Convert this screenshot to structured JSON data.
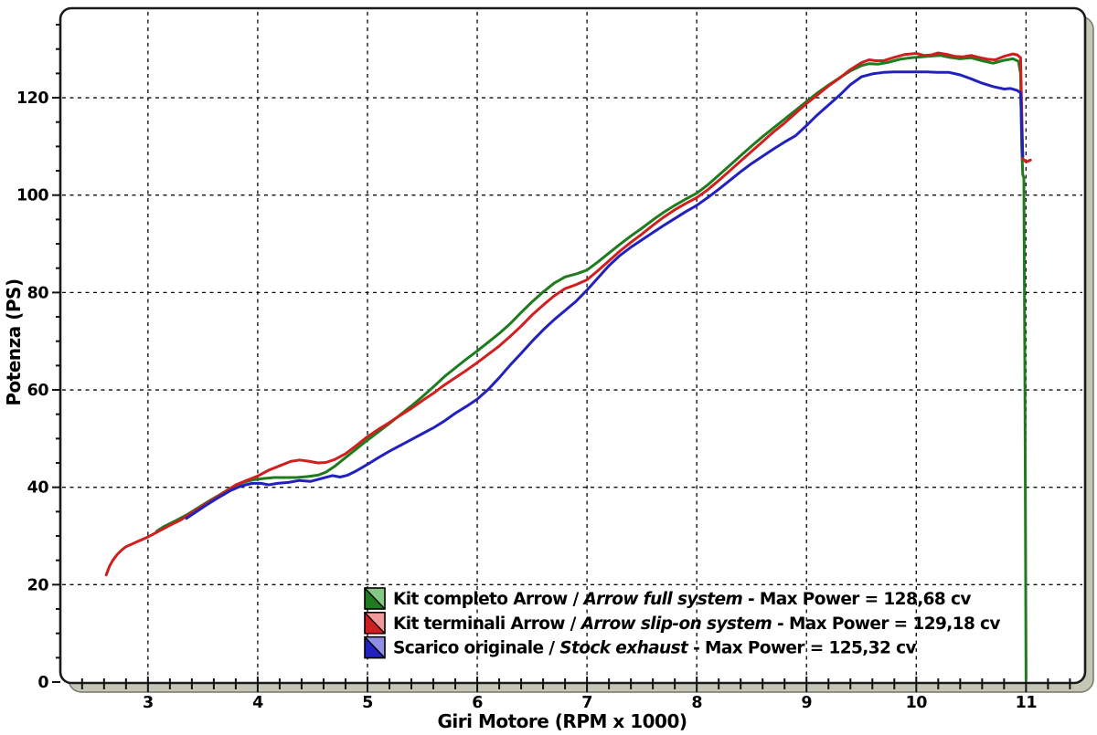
{
  "chart_data": {
    "type": "line",
    "title": "",
    "xlabel": "Giri Motore (RPM x 1000)",
    "ylabel": "Potenza (PS)",
    "xlim": [
      2.21,
      11.53
    ],
    "ylim": [
      0,
      138.2
    ],
    "x_ticks": [
      3,
      4,
      5,
      6,
      7,
      8,
      9,
      10,
      11
    ],
    "y_ticks": [
      0,
      20,
      40,
      60,
      80,
      100,
      120
    ],
    "x_minor_step": 0.2,
    "y_minor_step": 5,
    "grid": "dashed",
    "legend_position": "inside-bottom-center",
    "colors": {
      "grid": "#0d0d0d",
      "frame": "#1a1a1a",
      "tick": "#111111",
      "text": "#000000",
      "plot_bg": "#ffffff",
      "shadow_plate": "#c6c6b6",
      "shadow_edge": "#75756a"
    },
    "series": [
      {
        "name": "Kit completo Arrow / Arrow full system",
        "legend_prefix": "Kit completo Arrow / ",
        "legend_italic": "Arrow full system",
        "legend_suffix": " - Max Power = 128,68 cv",
        "max_power_cv": 128.68,
        "color": "#1e7b1e",
        "light_color": "#84c884",
        "points": [
          [
            3.08,
            31.0
          ],
          [
            3.15,
            32.0
          ],
          [
            3.25,
            33.1
          ],
          [
            3.35,
            34.3
          ],
          [
            3.45,
            35.7
          ],
          [
            3.55,
            37.1
          ],
          [
            3.65,
            38.4
          ],
          [
            3.75,
            39.8
          ],
          [
            3.85,
            40.9
          ],
          [
            3.95,
            41.5
          ],
          [
            4.05,
            41.8
          ],
          [
            4.15,
            42.0
          ],
          [
            4.25,
            42.0
          ],
          [
            4.35,
            42.0
          ],
          [
            4.45,
            42.2
          ],
          [
            4.55,
            42.5
          ],
          [
            4.62,
            43.1
          ],
          [
            4.7,
            44.3
          ],
          [
            4.8,
            46.1
          ],
          [
            4.9,
            47.9
          ],
          [
            5.0,
            49.7
          ],
          [
            5.1,
            51.4
          ],
          [
            5.2,
            53.1
          ],
          [
            5.3,
            54.9
          ],
          [
            5.4,
            56.7
          ],
          [
            5.5,
            58.6
          ],
          [
            5.6,
            60.6
          ],
          [
            5.7,
            62.7
          ],
          [
            5.8,
            64.5
          ],
          [
            5.9,
            66.3
          ],
          [
            6.0,
            68.0
          ],
          [
            6.1,
            69.8
          ],
          [
            6.2,
            71.6
          ],
          [
            6.3,
            73.6
          ],
          [
            6.4,
            75.9
          ],
          [
            6.5,
            78.1
          ],
          [
            6.6,
            80.1
          ],
          [
            6.7,
            81.9
          ],
          [
            6.8,
            83.2
          ],
          [
            6.9,
            83.8
          ],
          [
            7.0,
            84.6
          ],
          [
            7.1,
            86.3
          ],
          [
            7.2,
            88.1
          ],
          [
            7.3,
            89.9
          ],
          [
            7.4,
            91.6
          ],
          [
            7.5,
            93.2
          ],
          [
            7.6,
            94.9
          ],
          [
            7.7,
            96.5
          ],
          [
            7.8,
            97.9
          ],
          [
            7.9,
            99.2
          ],
          [
            8.0,
            100.4
          ],
          [
            8.1,
            102.1
          ],
          [
            8.2,
            104.1
          ],
          [
            8.3,
            106.1
          ],
          [
            8.4,
            108.1
          ],
          [
            8.5,
            110.1
          ],
          [
            8.6,
            112.0
          ],
          [
            8.7,
            113.8
          ],
          [
            8.8,
            115.6
          ],
          [
            8.9,
            117.4
          ],
          [
            9.0,
            119.2
          ],
          [
            9.1,
            121.0
          ],
          [
            9.2,
            122.6
          ],
          [
            9.3,
            124.1
          ],
          [
            9.4,
            125.5
          ],
          [
            9.5,
            126.6
          ],
          [
            9.57,
            127.0
          ],
          [
            9.65,
            126.9
          ],
          [
            9.75,
            127.3
          ],
          [
            9.85,
            127.9
          ],
          [
            9.95,
            128.2
          ],
          [
            10.05,
            128.4
          ],
          [
            10.15,
            128.6
          ],
          [
            10.22,
            128.7
          ],
          [
            10.3,
            128.3
          ],
          [
            10.4,
            128.0
          ],
          [
            10.5,
            128.2
          ],
          [
            10.6,
            127.6
          ],
          [
            10.7,
            127.1
          ],
          [
            10.8,
            127.7
          ],
          [
            10.88,
            128.0
          ],
          [
            10.93,
            127.5
          ],
          [
            10.95,
            125.0
          ],
          [
            10.96,
            110.0
          ],
          [
            10.97,
            104.2
          ],
          [
            10.98,
            103.6
          ],
          [
            10.99,
            60.0
          ],
          [
            11.0,
            0.5
          ]
        ]
      },
      {
        "name": "Kit terminali Arrow / Arrow slip-on system",
        "legend_prefix": "Kit terminali Arrow / ",
        "legend_italic": "Arrow slip-on system",
        "legend_suffix": " - Max Power = 129,18 cv",
        "max_power_cv": 129.18,
        "color": "#cf1f1f",
        "light_color": "#f29a9a",
        "points": [
          [
            2.62,
            22.0
          ],
          [
            2.65,
            23.8
          ],
          [
            2.68,
            25.0
          ],
          [
            2.72,
            26.2
          ],
          [
            2.76,
            27.1
          ],
          [
            2.8,
            27.8
          ],
          [
            2.85,
            28.3
          ],
          [
            2.9,
            28.8
          ],
          [
            3.0,
            29.8
          ],
          [
            3.1,
            31.0
          ],
          [
            3.2,
            32.2
          ],
          [
            3.3,
            33.3
          ],
          [
            3.4,
            34.8
          ],
          [
            3.5,
            36.2
          ],
          [
            3.6,
            37.6
          ],
          [
            3.7,
            39.0
          ],
          [
            3.8,
            40.5
          ],
          [
            3.9,
            41.4
          ],
          [
            4.0,
            42.3
          ],
          [
            4.1,
            43.5
          ],
          [
            4.2,
            44.4
          ],
          [
            4.3,
            45.3
          ],
          [
            4.38,
            45.6
          ],
          [
            4.45,
            45.4
          ],
          [
            4.55,
            45.0
          ],
          [
            4.62,
            45.1
          ],
          [
            4.7,
            45.7
          ],
          [
            4.8,
            46.9
          ],
          [
            4.9,
            48.6
          ],
          [
            5.0,
            50.4
          ],
          [
            5.1,
            51.9
          ],
          [
            5.2,
            53.3
          ],
          [
            5.3,
            54.8
          ],
          [
            5.4,
            56.2
          ],
          [
            5.5,
            57.8
          ],
          [
            5.6,
            59.3
          ],
          [
            5.7,
            61.0
          ],
          [
            5.8,
            62.5
          ],
          [
            5.9,
            64.0
          ],
          [
            6.0,
            65.6
          ],
          [
            6.1,
            67.3
          ],
          [
            6.2,
            69.0
          ],
          [
            6.3,
            71.0
          ],
          [
            6.4,
            73.1
          ],
          [
            6.5,
            75.4
          ],
          [
            6.6,
            77.4
          ],
          [
            6.7,
            79.3
          ],
          [
            6.8,
            80.8
          ],
          [
            6.9,
            81.6
          ],
          [
            7.0,
            82.6
          ],
          [
            7.1,
            84.5
          ],
          [
            7.2,
            86.5
          ],
          [
            7.3,
            88.5
          ],
          [
            7.4,
            90.3
          ],
          [
            7.5,
            92.0
          ],
          [
            7.6,
            93.8
          ],
          [
            7.7,
            95.5
          ],
          [
            7.8,
            97.0
          ],
          [
            7.9,
            98.3
          ],
          [
            8.0,
            99.5
          ],
          [
            8.1,
            101.1
          ],
          [
            8.2,
            103.0
          ],
          [
            8.3,
            105.0
          ],
          [
            8.4,
            107.0
          ],
          [
            8.5,
            109.0
          ],
          [
            8.6,
            111.0
          ],
          [
            8.7,
            113.0
          ],
          [
            8.8,
            114.8
          ],
          [
            8.9,
            116.8
          ],
          [
            9.0,
            118.8
          ],
          [
            9.1,
            120.6
          ],
          [
            9.2,
            122.4
          ],
          [
            9.3,
            124.0
          ],
          [
            9.4,
            125.8
          ],
          [
            9.5,
            127.2
          ],
          [
            9.57,
            127.8
          ],
          [
            9.63,
            127.6
          ],
          [
            9.7,
            127.6
          ],
          [
            9.8,
            128.3
          ],
          [
            9.9,
            128.9
          ],
          [
            10.0,
            129.1
          ],
          [
            10.07,
            128.7
          ],
          [
            10.14,
            128.8
          ],
          [
            10.2,
            129.2
          ],
          [
            10.28,
            128.9
          ],
          [
            10.35,
            128.5
          ],
          [
            10.42,
            128.4
          ],
          [
            10.5,
            128.7
          ],
          [
            10.57,
            128.3
          ],
          [
            10.65,
            127.9
          ],
          [
            10.72,
            127.8
          ],
          [
            10.8,
            128.5
          ],
          [
            10.88,
            129.0
          ],
          [
            10.92,
            128.8
          ],
          [
            10.95,
            128.2
          ],
          [
            10.96,
            118.0
          ],
          [
            10.97,
            107.5
          ],
          [
            11.0,
            106.8
          ],
          [
            11.04,
            107.2
          ]
        ]
      },
      {
        "name": "Scarico originale / Stock exhaust",
        "legend_prefix": "Scarico originale / ",
        "legend_italic": "Stock exhaust",
        "legend_suffix": " - Max Power = 125,32 cv",
        "max_power_cv": 125.32,
        "color": "#2121bd",
        "light_color": "#8f8fe8",
        "points": [
          [
            3.35,
            33.6
          ],
          [
            3.45,
            35.1
          ],
          [
            3.55,
            36.6
          ],
          [
            3.65,
            38.0
          ],
          [
            3.75,
            39.3
          ],
          [
            3.85,
            40.3
          ],
          [
            3.95,
            40.8
          ],
          [
            4.03,
            40.8
          ],
          [
            4.1,
            40.5
          ],
          [
            4.18,
            40.8
          ],
          [
            4.28,
            41.0
          ],
          [
            4.38,
            41.4
          ],
          [
            4.48,
            41.2
          ],
          [
            4.58,
            41.8
          ],
          [
            4.68,
            42.4
          ],
          [
            4.75,
            42.1
          ],
          [
            4.82,
            42.5
          ],
          [
            4.9,
            43.4
          ],
          [
            5.0,
            44.7
          ],
          [
            5.1,
            46.1
          ],
          [
            5.2,
            47.4
          ],
          [
            5.3,
            48.6
          ],
          [
            5.4,
            49.8
          ],
          [
            5.5,
            51.0
          ],
          [
            5.6,
            52.2
          ],
          [
            5.7,
            53.6
          ],
          [
            5.8,
            55.2
          ],
          [
            5.9,
            56.6
          ],
          [
            6.0,
            58.1
          ],
          [
            6.1,
            60.1
          ],
          [
            6.2,
            62.5
          ],
          [
            6.3,
            65.1
          ],
          [
            6.4,
            67.5
          ],
          [
            6.5,
            70.0
          ],
          [
            6.6,
            72.3
          ],
          [
            6.7,
            74.4
          ],
          [
            6.8,
            76.3
          ],
          [
            6.9,
            78.2
          ],
          [
            7.0,
            80.5
          ],
          [
            7.1,
            83.0
          ],
          [
            7.2,
            85.5
          ],
          [
            7.3,
            87.6
          ],
          [
            7.4,
            89.3
          ],
          [
            7.5,
            90.8
          ],
          [
            7.6,
            92.3
          ],
          [
            7.7,
            93.8
          ],
          [
            7.8,
            95.2
          ],
          [
            7.9,
            96.6
          ],
          [
            8.0,
            97.9
          ],
          [
            8.1,
            99.5
          ],
          [
            8.2,
            101.2
          ],
          [
            8.3,
            103.0
          ],
          [
            8.4,
            104.8
          ],
          [
            8.5,
            106.5
          ],
          [
            8.6,
            108.0
          ],
          [
            8.7,
            109.5
          ],
          [
            8.8,
            110.9
          ],
          [
            8.9,
            112.2
          ],
          [
            9.0,
            114.3
          ],
          [
            9.1,
            116.5
          ],
          [
            9.2,
            118.5
          ],
          [
            9.3,
            120.5
          ],
          [
            9.4,
            122.7
          ],
          [
            9.5,
            124.3
          ],
          [
            9.6,
            124.9
          ],
          [
            9.7,
            125.2
          ],
          [
            9.8,
            125.3
          ],
          [
            9.9,
            125.3
          ],
          [
            10.0,
            125.3
          ],
          [
            10.1,
            125.3
          ],
          [
            10.2,
            125.2
          ],
          [
            10.3,
            125.2
          ],
          [
            10.4,
            124.7
          ],
          [
            10.5,
            123.9
          ],
          [
            10.6,
            123.0
          ],
          [
            10.7,
            122.3
          ],
          [
            10.8,
            121.8
          ],
          [
            10.86,
            121.9
          ],
          [
            10.92,
            121.5
          ],
          [
            10.95,
            121.0
          ],
          [
            10.96,
            114.0
          ],
          [
            10.97,
            108.0
          ]
        ]
      }
    ]
  }
}
